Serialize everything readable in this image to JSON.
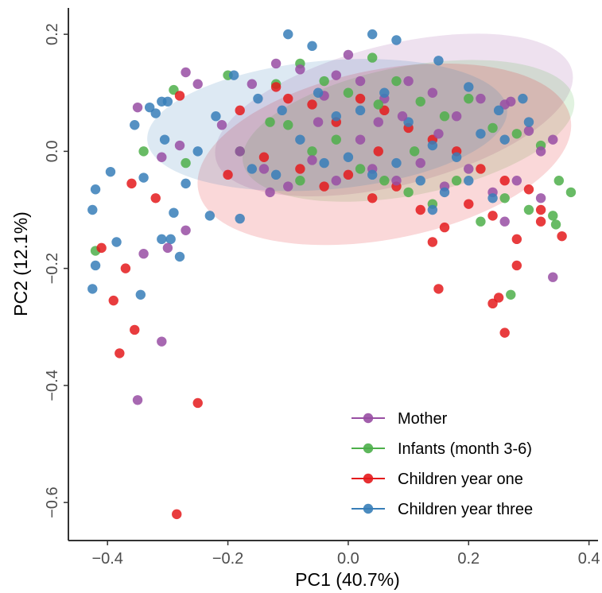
{
  "chart_data": {
    "type": "scatter",
    "xlabel": "PC1 (40.7%)",
    "ylabel": "PC2 (12.1%)",
    "xlim": [
      -0.465,
      0.415
    ],
    "ylim": [
      -0.665,
      0.245
    ],
    "x_ticks": [
      {
        "value": -0.4,
        "label": "−0.4"
      },
      {
        "value": -0.2,
        "label": "−0.2"
      },
      {
        "value": 0.0,
        "label": "0.0"
      },
      {
        "value": 0.2,
        "label": "0.2"
      },
      {
        "value": 0.4,
        "label": "0.4"
      }
    ],
    "y_ticks": [
      {
        "value": 0.2,
        "label": "0.2"
      },
      {
        "value": 0.0,
        "label": "0.0"
      },
      {
        "value": -0.2,
        "label": "−0.2"
      },
      {
        "value": -0.4,
        "label": "−0.4"
      },
      {
        "value": -0.6,
        "label": "−0.6"
      }
    ],
    "grid": false,
    "legend_position": "bottom-right",
    "series": [
      {
        "name": "Mother",
        "color": "#984ea3",
        "ellipse": {
          "cx": 0.076,
          "cy": 0.062,
          "rx": 0.305,
          "ry": 0.12,
          "angle_deg": -14
        },
        "points": [
          [
            -0.35,
            0.075
          ],
          [
            -0.27,
            0.135
          ],
          [
            -0.25,
            0.115
          ],
          [
            -0.16,
            0.115
          ],
          [
            -0.12,
            0.15
          ],
          [
            -0.08,
            0.14
          ],
          [
            -0.04,
            0.095
          ],
          [
            -0.02,
            0.13
          ],
          [
            0.0,
            0.165
          ],
          [
            0.02,
            0.12
          ],
          [
            0.06,
            0.09
          ],
          [
            0.1,
            0.12
          ],
          [
            0.14,
            0.1
          ],
          [
            0.18,
            0.06
          ],
          [
            0.22,
            0.09
          ],
          [
            0.26,
            0.08
          ],
          [
            0.3,
            0.035
          ],
          [
            0.32,
            0.0
          ],
          [
            0.34,
            0.02
          ],
          [
            0.27,
            0.085
          ],
          [
            -0.31,
            -0.01
          ],
          [
            -0.21,
            0.045
          ],
          [
            -0.18,
            0.0
          ],
          [
            -0.14,
            -0.03
          ],
          [
            -0.1,
            -0.06
          ],
          [
            -0.06,
            -0.015
          ],
          [
            -0.02,
            -0.05
          ],
          [
            0.02,
            0.02
          ],
          [
            0.04,
            -0.03
          ],
          [
            0.08,
            -0.05
          ],
          [
            0.12,
            -0.02
          ],
          [
            0.16,
            -0.06
          ],
          [
            0.2,
            -0.03
          ],
          [
            0.24,
            -0.07
          ],
          [
            0.28,
            -0.05
          ],
          [
            0.32,
            -0.08
          ],
          [
            0.34,
            -0.215
          ],
          [
            -0.28,
            0.01
          ],
          [
            -0.34,
            -0.175
          ],
          [
            -0.27,
            -0.135
          ],
          [
            -0.3,
            -0.165
          ],
          [
            -0.31,
            -0.325
          ],
          [
            -0.35,
            -0.425
          ],
          [
            -0.13,
            -0.07
          ],
          [
            0.09,
            0.06
          ],
          [
            0.05,
            0.05
          ],
          [
            -0.05,
            0.05
          ],
          [
            0.15,
            0.03
          ],
          [
            0.26,
            -0.12
          ]
        ]
      },
      {
        "name": "Infants (month 3-6)",
        "color": "#4daf4a",
        "ellipse": {
          "cx": 0.1,
          "cy": 0.035,
          "rx": 0.28,
          "ry": 0.11,
          "angle_deg": -11
        },
        "points": [
          [
            -0.29,
            0.105
          ],
          [
            -0.2,
            0.13
          ],
          [
            -0.12,
            0.115
          ],
          [
            -0.08,
            0.15
          ],
          [
            -0.04,
            0.12
          ],
          [
            0.0,
            0.1
          ],
          [
            0.04,
            0.16
          ],
          [
            0.08,
            0.12
          ],
          [
            0.12,
            0.085
          ],
          [
            0.16,
            0.06
          ],
          [
            0.2,
            0.09
          ],
          [
            0.24,
            0.04
          ],
          [
            0.28,
            0.03
          ],
          [
            0.32,
            0.01
          ],
          [
            0.35,
            -0.05
          ],
          [
            0.37,
            -0.07
          ],
          [
            -0.34,
            0.0
          ],
          [
            -0.27,
            -0.02
          ],
          [
            -0.18,
            0.0
          ],
          [
            -0.1,
            0.045
          ],
          [
            -0.06,
            0.0
          ],
          [
            -0.02,
            0.02
          ],
          [
            0.02,
            -0.03
          ],
          [
            0.06,
            -0.05
          ],
          [
            0.1,
            -0.07
          ],
          [
            0.14,
            -0.09
          ],
          [
            0.18,
            -0.05
          ],
          [
            0.22,
            -0.12
          ],
          [
            0.26,
            -0.08
          ],
          [
            0.3,
            -0.1
          ],
          [
            0.34,
            -0.11
          ],
          [
            0.345,
            -0.125
          ],
          [
            -0.42,
            -0.17
          ],
          [
            0.27,
            -0.245
          ],
          [
            -0.13,
            0.05
          ],
          [
            0.05,
            0.08
          ],
          [
            0.11,
            0.0
          ],
          [
            -0.08,
            -0.05
          ]
        ]
      },
      {
        "name": "Children year one",
        "color": "#e41a1c",
        "ellipse": {
          "cx": 0.06,
          "cy": -0.005,
          "rx": 0.315,
          "ry": 0.145,
          "angle_deg": -11
        },
        "points": [
          [
            -0.28,
            0.095
          ],
          [
            -0.18,
            0.07
          ],
          [
            -0.12,
            0.11
          ],
          [
            -0.06,
            0.08
          ],
          [
            -0.02,
            0.05
          ],
          [
            0.02,
            0.09
          ],
          [
            0.06,
            0.07
          ],
          [
            0.1,
            0.04
          ],
          [
            0.14,
            0.02
          ],
          [
            0.18,
            0.0
          ],
          [
            0.22,
            -0.03
          ],
          [
            0.26,
            -0.05
          ],
          [
            0.3,
            -0.065
          ],
          [
            0.32,
            -0.1
          ],
          [
            -0.2,
            -0.04
          ],
          [
            -0.14,
            -0.01
          ],
          [
            -0.08,
            -0.03
          ],
          [
            -0.04,
            -0.06
          ],
          [
            0.0,
            -0.04
          ],
          [
            0.04,
            -0.08
          ],
          [
            0.08,
            -0.06
          ],
          [
            0.12,
            -0.1
          ],
          [
            0.16,
            -0.13
          ],
          [
            0.2,
            -0.09
          ],
          [
            0.24,
            -0.11
          ],
          [
            0.28,
            -0.15
          ],
          [
            0.32,
            -0.12
          ],
          [
            0.355,
            -0.145
          ],
          [
            0.14,
            -0.155
          ],
          [
            0.15,
            -0.235
          ],
          [
            0.24,
            -0.26
          ],
          [
            0.25,
            -0.25
          ],
          [
            0.26,
            -0.31
          ],
          [
            0.28,
            -0.195
          ],
          [
            -0.36,
            -0.055
          ],
          [
            -0.32,
            -0.08
          ],
          [
            -0.41,
            -0.165
          ],
          [
            -0.37,
            -0.2
          ],
          [
            -0.39,
            -0.255
          ],
          [
            -0.355,
            -0.305
          ],
          [
            -0.38,
            -0.345
          ],
          [
            -0.25,
            -0.43
          ],
          [
            -0.285,
            -0.62
          ],
          [
            0.05,
            0.0
          ],
          [
            -0.1,
            0.09
          ]
        ]
      },
      {
        "name": "Children year three",
        "color": "#377eb8",
        "ellipse": {
          "cx": -0.035,
          "cy": 0.045,
          "rx": 0.3,
          "ry": 0.11,
          "angle_deg": -5
        },
        "points": [
          [
            -0.42,
            -0.065
          ],
          [
            -0.425,
            -0.1
          ],
          [
            -0.425,
            -0.235
          ],
          [
            -0.42,
            -0.195
          ],
          [
            -0.385,
            -0.155
          ],
          [
            -0.395,
            -0.035
          ],
          [
            -0.355,
            0.045
          ],
          [
            -0.34,
            -0.045
          ],
          [
            -0.345,
            -0.245
          ],
          [
            -0.33,
            0.075
          ],
          [
            -0.32,
            0.065
          ],
          [
            -0.31,
            0.085
          ],
          [
            -0.3,
            0.085
          ],
          [
            -0.305,
            0.02
          ],
          [
            -0.31,
            -0.15
          ],
          [
            -0.295,
            -0.15
          ],
          [
            -0.28,
            -0.18
          ],
          [
            -0.29,
            -0.105
          ],
          [
            -0.27,
            -0.055
          ],
          [
            -0.23,
            -0.11
          ],
          [
            -0.18,
            -0.115
          ],
          [
            -0.22,
            0.06
          ],
          [
            -0.19,
            0.13
          ],
          [
            -0.15,
            0.09
          ],
          [
            -0.1,
            0.2
          ],
          [
            -0.06,
            0.18
          ],
          [
            0.04,
            0.2
          ],
          [
            0.08,
            0.19
          ],
          [
            0.15,
            0.155
          ],
          [
            0.2,
            0.11
          ],
          [
            0.25,
            0.07
          ],
          [
            0.29,
            0.09
          ],
          [
            -0.11,
            0.07
          ],
          [
            -0.05,
            0.1
          ],
          [
            -0.02,
            0.06
          ],
          [
            0.02,
            0.07
          ],
          [
            0.06,
            0.1
          ],
          [
            0.1,
            0.05
          ],
          [
            0.14,
            0.01
          ],
          [
            0.18,
            -0.01
          ],
          [
            0.22,
            0.03
          ],
          [
            0.26,
            0.02
          ],
          [
            0.3,
            0.05
          ],
          [
            -0.08,
            0.02
          ],
          [
            -0.04,
            -0.02
          ],
          [
            0.0,
            -0.01
          ],
          [
            0.04,
            -0.04
          ],
          [
            0.08,
            -0.02
          ],
          [
            0.12,
            -0.05
          ],
          [
            0.16,
            -0.07
          ],
          [
            0.2,
            -0.05
          ],
          [
            0.24,
            -0.08
          ],
          [
            0.14,
            -0.1
          ],
          [
            -0.25,
            0.0
          ],
          [
            -0.16,
            -0.03
          ],
          [
            -0.12,
            -0.04
          ]
        ]
      }
    ]
  }
}
